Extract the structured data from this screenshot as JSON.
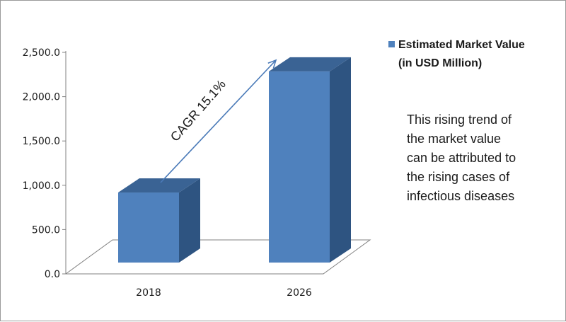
{
  "chart_data": {
    "type": "bar",
    "categories": [
      "2018",
      "2026"
    ],
    "series": [
      {
        "name": "Estimated Market Value (in USD Million)",
        "values": [
          850,
          2320
        ]
      }
    ],
    "ylim": [
      0,
      2500
    ],
    "yticks": [
      "0.0",
      "500.0",
      "1,000.0",
      "1,500.0",
      "2,000.0",
      "2,500.0"
    ],
    "legend": {
      "lines": [
        "Estimated Market Value",
        "(in USD Million)"
      ],
      "placement": "top-right"
    },
    "annotation": "CAGR 15.1%",
    "note_lines": [
      "This rising trend of",
      "the market value",
      "can be attributed to",
      "the rising cases of",
      "infectious diseases"
    ],
    "grid": false,
    "colors": {
      "front": "#4f81bd",
      "side": "#2e5481",
      "top": "#3a6394",
      "axis": "#808080",
      "arrow": "#4a7ab8"
    }
  }
}
